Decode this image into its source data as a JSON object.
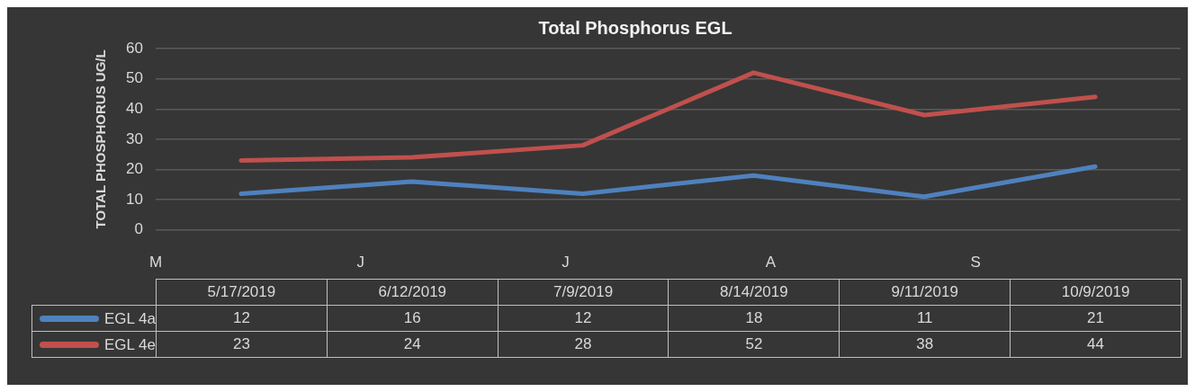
{
  "chart_data": {
    "type": "line",
    "title": "Total Phosphorus EGL",
    "ylabel": "TOTAL PHOSPHORUS UG/L",
    "categories": [
      "5/17/2019",
      "6/12/2019",
      "7/9/2019",
      "8/14/2019",
      "9/11/2019",
      "10/9/2019"
    ],
    "annotations": [
      "M",
      "J",
      "J",
      "A",
      "S"
    ],
    "ylim": [
      0,
      60
    ],
    "yticks": [
      0,
      10,
      20,
      30,
      40,
      50,
      60
    ],
    "grid": "y",
    "legend": "bottom",
    "data_labels": true,
    "series": [
      {
        "name": "EGL 4a",
        "color": "#4f81bd",
        "values": [
          12,
          16,
          12,
          18,
          11,
          21
        ]
      },
      {
        "name": "EGL 4e",
        "color": "#c0504d",
        "values": [
          23,
          24,
          28,
          52,
          38,
          44
        ]
      }
    ]
  }
}
